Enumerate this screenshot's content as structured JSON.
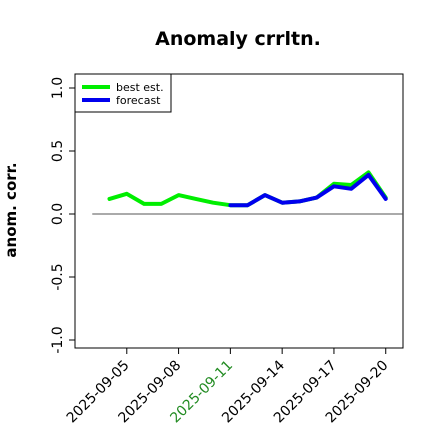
{
  "chart_data": {
    "type": "line",
    "title": "Anomaly crrltn.",
    "xlabel": "",
    "ylabel": "anom. corr.",
    "ylim": [
      -1.0,
      1.0
    ],
    "yticks": [
      "-1.0",
      "-0.5",
      "0.0",
      "0.5",
      "1.0"
    ],
    "ytick_values": [
      -1.0,
      -0.5,
      0.0,
      0.5,
      1.0
    ],
    "x_dates": [
      "2025-09-03",
      "2025-09-04",
      "2025-09-05",
      "2025-09-06",
      "2025-09-07",
      "2025-09-08",
      "2025-09-09",
      "2025-09-10",
      "2025-09-11",
      "2025-09-12",
      "2025-09-13",
      "2025-09-14",
      "2025-09-15",
      "2025-09-16",
      "2025-09-17",
      "2025-09-18",
      "2025-09-19",
      "2025-09-20"
    ],
    "xlim": [
      "2025-09-02",
      "2025-09-21"
    ],
    "xticks": [
      "2025-09-05",
      "2025-09-08",
      "2025-09-11",
      "2025-09-14",
      "2025-09-17",
      "2025-09-20"
    ],
    "highlighted_xtick": "2025-09-11",
    "reference_line_y": 0.0,
    "reference_line_x": [
      "2025-09-03",
      "2025-09-21"
    ],
    "series": [
      {
        "name": "best est.",
        "color": "#00ee00",
        "x": [
          "2025-09-04",
          "2025-09-05",
          "2025-09-06",
          "2025-09-07",
          "2025-09-08",
          "2025-09-09",
          "2025-09-10",
          "2025-09-11",
          "2025-09-12",
          "2025-09-13",
          "2025-09-14",
          "2025-09-15",
          "2025-09-16",
          "2025-09-17",
          "2025-09-18",
          "2025-09-19",
          "2025-09-20"
        ],
        "values": [
          0.12,
          0.16,
          0.08,
          0.08,
          0.15,
          0.12,
          0.09,
          0.07,
          0.07,
          0.15,
          0.09,
          0.1,
          0.13,
          0.24,
          0.23,
          0.33,
          0.13
        ]
      },
      {
        "name": "forecast",
        "color": "#0000ee",
        "x": [
          "2025-09-11",
          "2025-09-12",
          "2025-09-13",
          "2025-09-14",
          "2025-09-15",
          "2025-09-16",
          "2025-09-17",
          "2025-09-18",
          "2025-09-19",
          "2025-09-20"
        ],
        "values": [
          0.07,
          0.07,
          0.15,
          0.09,
          0.1,
          0.13,
          0.22,
          0.2,
          0.31,
          0.12
        ]
      }
    ],
    "legend": {
      "placement": "top-left",
      "entries": [
        "best est.",
        "forecast"
      ]
    },
    "colors": {
      "tick_text": "#000000",
      "highlight_tick_text": "#228b22",
      "reference_line": "#555555",
      "frame": "#000000"
    }
  }
}
